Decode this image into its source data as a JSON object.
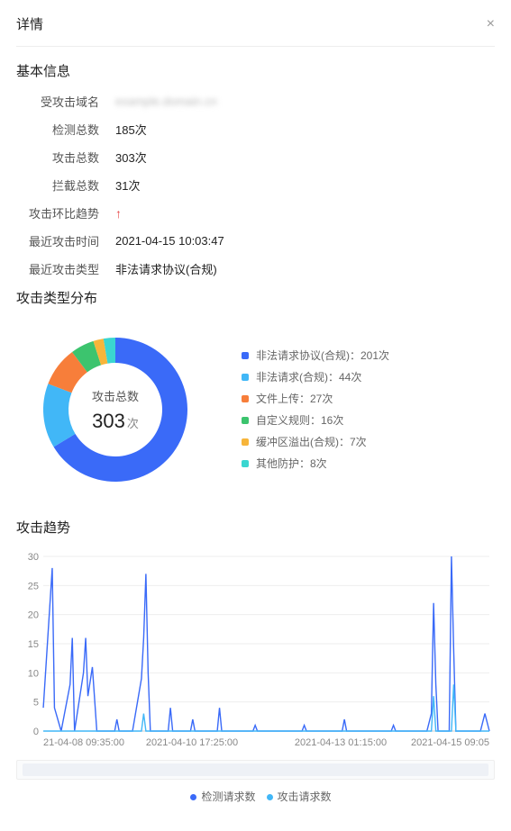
{
  "header": {
    "title": "详情"
  },
  "basic": {
    "title": "基本信息",
    "rows": [
      {
        "label": "受攻击域名",
        "value": "example.domain.cn",
        "blurred": true
      },
      {
        "label": "检测总数",
        "value": "185次"
      },
      {
        "label": "攻击总数",
        "value": "303次"
      },
      {
        "label": "拦截总数",
        "value": "31次"
      },
      {
        "label": "攻击环比趋势",
        "value": "↑",
        "trend": true
      },
      {
        "label": "最近攻击时间",
        "value": "2021-04-15 10:03:47"
      },
      {
        "label": "最近攻击类型",
        "value": "非法请求协议(合规)"
      }
    ]
  },
  "donut": {
    "title": "攻击类型分布",
    "center_label": "攻击总数",
    "center_value": "303",
    "center_unit": "次",
    "total": 303,
    "slices": [
      {
        "label": "非法请求协议(合规)：201次",
        "value": 201,
        "color": "#3a6af8"
      },
      {
        "label": "非法请求(合规)：44次",
        "value": 44,
        "color": "#41b7f7"
      },
      {
        "label": "文件上传：27次",
        "value": 27,
        "color": "#f77e3a"
      },
      {
        "label": "自定义规则：16次",
        "value": 16,
        "color": "#3cc46e"
      },
      {
        "label": "缓冲区溢出(合规)：7次",
        "value": 7,
        "color": "#f7b53a"
      },
      {
        "label": "其他防护：8次",
        "value": 8,
        "color": "#3ad6d0"
      }
    ],
    "inner_radius": 52,
    "outer_radius": 80,
    "background_color": "#ffffff"
  },
  "trend": {
    "title": "攻击趋势",
    "y_max": 30,
    "y_ticks": [
      0,
      5,
      10,
      15,
      20,
      25,
      30
    ],
    "x_labels": [
      "21-04-08 09:35:00",
      "2021-04-10 17:25:00",
      "2021-04-13 01:15:00",
      "2021-04-15 09:05"
    ],
    "grid_color": "#eeeeee",
    "axis_color": "#cccccc",
    "text_color": "#888888",
    "tick_fontsize": 11,
    "series": [
      {
        "name": "检测请求数",
        "color": "#3a6af8",
        "points": [
          [
            0.0,
            4
          ],
          [
            0.02,
            28
          ],
          [
            0.025,
            4
          ],
          [
            0.04,
            0
          ],
          [
            0.06,
            8
          ],
          [
            0.065,
            16
          ],
          [
            0.07,
            0
          ],
          [
            0.09,
            10
          ],
          [
            0.095,
            16
          ],
          [
            0.1,
            6
          ],
          [
            0.11,
            11
          ],
          [
            0.12,
            0
          ],
          [
            0.16,
            0
          ],
          [
            0.165,
            2
          ],
          [
            0.17,
            0
          ],
          [
            0.2,
            0
          ],
          [
            0.22,
            9
          ],
          [
            0.225,
            16
          ],
          [
            0.23,
            27
          ],
          [
            0.235,
            10
          ],
          [
            0.24,
            0
          ],
          [
            0.28,
            0
          ],
          [
            0.285,
            4
          ],
          [
            0.29,
            0
          ],
          [
            0.33,
            0
          ],
          [
            0.335,
            2
          ],
          [
            0.34,
            0
          ],
          [
            0.39,
            0
          ],
          [
            0.395,
            4
          ],
          [
            0.4,
            0
          ],
          [
            0.47,
            0
          ],
          [
            0.475,
            1
          ],
          [
            0.48,
            0
          ],
          [
            0.58,
            0
          ],
          [
            0.585,
            1
          ],
          [
            0.59,
            0
          ],
          [
            0.67,
            0
          ],
          [
            0.675,
            2
          ],
          [
            0.68,
            0
          ],
          [
            0.78,
            0
          ],
          [
            0.785,
            1
          ],
          [
            0.79,
            0
          ],
          [
            0.86,
            0
          ],
          [
            0.87,
            3
          ],
          [
            0.875,
            22
          ],
          [
            0.88,
            8
          ],
          [
            0.885,
            0
          ],
          [
            0.91,
            0
          ],
          [
            0.915,
            30
          ],
          [
            0.92,
            14
          ],
          [
            0.925,
            0
          ],
          [
            0.98,
            0
          ],
          [
            0.99,
            3
          ],
          [
            1.0,
            0
          ]
        ]
      },
      {
        "name": "攻击请求数",
        "color": "#41b7f7",
        "points": [
          [
            0.0,
            0
          ],
          [
            0.05,
            0
          ],
          [
            0.22,
            0
          ],
          [
            0.225,
            3
          ],
          [
            0.23,
            0
          ],
          [
            0.87,
            0
          ],
          [
            0.875,
            6
          ],
          [
            0.88,
            0
          ],
          [
            0.915,
            0
          ],
          [
            0.92,
            8
          ],
          [
            0.925,
            0
          ],
          [
            1.0,
            0
          ]
        ]
      }
    ],
    "legend": [
      {
        "label": "检测请求数",
        "color": "#3a6af8"
      },
      {
        "label": "攻击请求数",
        "color": "#41b7f7"
      }
    ]
  }
}
